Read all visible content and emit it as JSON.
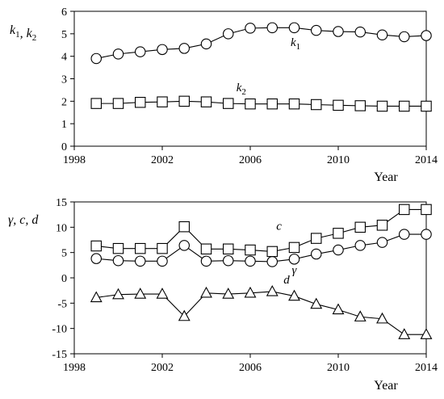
{
  "chart_data": [
    {
      "type": "line",
      "ylabel": "k1, k2",
      "ylabel_parts": [
        {
          "text": "k",
          "sub": "1"
        },
        {
          "text": ", "
        },
        {
          "text": "k",
          "sub": "2"
        }
      ],
      "xlabel": "Year",
      "xlim": [
        1998,
        2014
      ],
      "ylim": [
        0,
        6
      ],
      "xticks": [
        1998,
        2002,
        2006,
        2010,
        2014
      ],
      "yticks": [
        0,
        1,
        2,
        3,
        4,
        5,
        6
      ],
      "x": [
        1999,
        2000,
        2001,
        2002,
        2003,
        2004,
        2005,
        2006,
        2007,
        2008,
        2009,
        2010,
        2011,
        2012,
        2013,
        2014
      ],
      "series": [
        {
          "name": "k1",
          "label": {
            "text": "k",
            "sub": "1"
          },
          "marker": "circle",
          "values": [
            3.9,
            4.1,
            4.2,
            4.3,
            4.35,
            4.55,
            5.0,
            5.25,
            5.27,
            5.27,
            5.15,
            5.1,
            5.08,
            4.95,
            4.87,
            4.92
          ]
        },
        {
          "name": "k2",
          "label": {
            "text": "k",
            "sub": "2"
          },
          "marker": "square",
          "values": [
            1.9,
            1.9,
            1.95,
            1.97,
            2.0,
            1.97,
            1.9,
            1.88,
            1.88,
            1.88,
            1.85,
            1.82,
            1.8,
            1.78,
            1.78,
            1.78
          ]
        }
      ]
    },
    {
      "type": "line",
      "ylabel": "γ, c, d",
      "xlabel": "Year",
      "xlim": [
        1998,
        2014
      ],
      "ylim": [
        -15,
        15
      ],
      "xticks": [
        1998,
        2002,
        2006,
        2010,
        2014
      ],
      "yticks": [
        -15,
        -10,
        -5,
        0,
        5,
        10,
        15
      ],
      "x": [
        1999,
        2000,
        2001,
        2002,
        2003,
        2004,
        2005,
        2006,
        2007,
        2008,
        2009,
        2010,
        2011,
        2012,
        2013,
        2014
      ],
      "series": [
        {
          "name": "c",
          "label": {
            "text": "c"
          },
          "marker": "square",
          "values": [
            6.3,
            5.8,
            5.8,
            5.8,
            10.1,
            5.7,
            5.7,
            5.5,
            5.2,
            6.0,
            7.8,
            8.8,
            10.0,
            10.4,
            13.5,
            13.5
          ]
        },
        {
          "name": "γ",
          "label": {
            "text": "γ"
          },
          "marker": "circle",
          "values": [
            3.8,
            3.4,
            3.3,
            3.3,
            6.4,
            3.3,
            3.4,
            3.3,
            3.2,
            3.7,
            4.7,
            5.5,
            6.4,
            7.0,
            8.6,
            8.6
          ]
        },
        {
          "name": "d",
          "label": {
            "text": "d"
          },
          "marker": "triangle",
          "values": [
            -3.9,
            -3.3,
            -3.2,
            -3.2,
            -7.6,
            -3.0,
            -3.2,
            -3.0,
            -2.7,
            -3.6,
            -5.2,
            -6.3,
            -7.7,
            -8.1,
            -11.2,
            -11.2
          ]
        }
      ]
    }
  ]
}
